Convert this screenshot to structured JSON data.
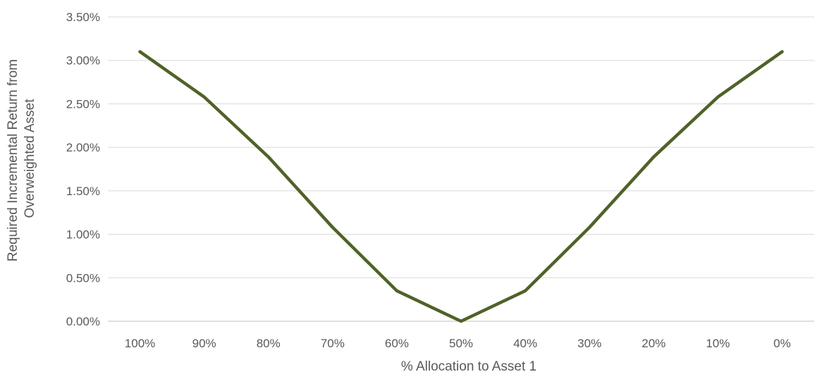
{
  "chart_data": {
    "type": "line",
    "categories": [
      "100%",
      "90%",
      "80%",
      "70%",
      "60%",
      "50%",
      "40%",
      "30%",
      "20%",
      "10%",
      "0%"
    ],
    "series": [
      {
        "values": [
          3.1,
          2.58,
          1.89,
          1.08,
          0.35,
          0.0,
          0.35,
          1.08,
          1.89,
          2.58,
          3.1
        ],
        "color": "#4F6228"
      }
    ],
    "y_ticks": [
      "0.00%",
      "0.50%",
      "1.00%",
      "1.50%",
      "2.00%",
      "2.50%",
      "3.00%",
      "3.50%"
    ],
    "ylim": [
      0,
      3.5
    ],
    "xlabel": "% Allocation to Asset 1",
    "ylabel_lines": [
      "Required Incremental Return from",
      "Overweighted Asset"
    ],
    "grid": true,
    "legend": "none",
    "gridline_color": "#D9D9D9",
    "axis_line_color": "#BFBFBF"
  }
}
